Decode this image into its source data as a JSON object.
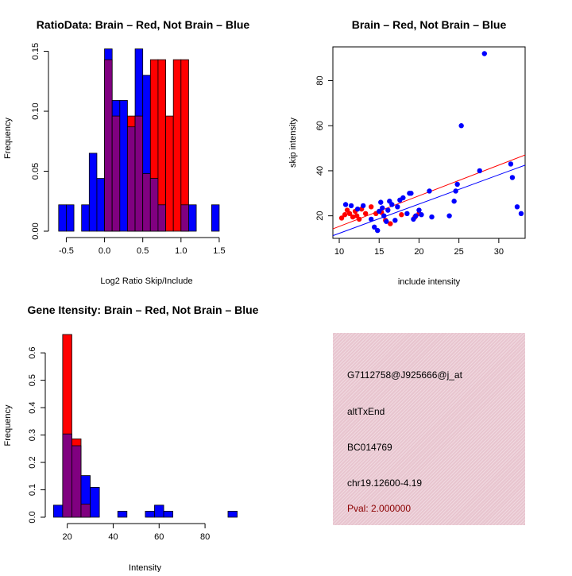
{
  "colors": {
    "brain": "#ff0000",
    "not_brain": "#0000ff",
    "overlap": "#800080",
    "panel_bg": "#e8c5cf",
    "pval_text": "#8b0000"
  },
  "chart_data": [
    {
      "type": "bar",
      "subtype": "overlaid-histogram",
      "title": "RatioData: Brain – Red, Not Brain – Blue",
      "xlabel": "Log2 Ratio Skip/Include",
      "ylabel": "Frequency",
      "xlim": [
        -0.65,
        1.75
      ],
      "ylim": [
        0,
        0.155
      ],
      "xticks": [
        -0.5,
        0.0,
        0.5,
        1.0,
        1.5
      ],
      "xtick_labels": [
        "-0.5",
        "0.0",
        "0.5",
        "1.0",
        "1.5"
      ],
      "yticks": [
        0,
        0.05,
        0.1,
        0.15
      ],
      "ytick_labels": [
        "0.00",
        "0.05",
        "0.10",
        "0.15"
      ],
      "bin_width": 0.1,
      "bin_starts": [
        -0.6,
        -0.5,
        -0.4,
        -0.3,
        -0.2,
        -0.1,
        0.0,
        0.1,
        0.2,
        0.3,
        0.4,
        0.5,
        0.6,
        0.7,
        0.8,
        0.9,
        1.0,
        1.1,
        1.2,
        1.3,
        1.4,
        1.5,
        1.6
      ],
      "series": [
        {
          "name": "Brain",
          "color": "red",
          "values": [
            0,
            0,
            0,
            0,
            0,
            0,
            0.143,
            0.096,
            0,
            0.096,
            0.096,
            0.048,
            0.143,
            0.143,
            0.096,
            0.143,
            0.143,
            0,
            0,
            0,
            0,
            0,
            0
          ]
        },
        {
          "name": "Not Brain",
          "color": "blue",
          "values": [
            0.022,
            0.022,
            0,
            0.022,
            0.065,
            0.044,
            0.152,
            0.109,
            0.109,
            0.087,
            0.152,
            0.13,
            0.044,
            0.022,
            0,
            0,
            0.022,
            0.022,
            0,
            0,
            0.022,
            0,
            0
          ]
        }
      ]
    },
    {
      "type": "scatter",
      "title": "Brain – Red, Not Brain – Blue",
      "xlabel": "include intensity",
      "ylabel": "skip intensity",
      "xlim": [
        9.2,
        33.3
      ],
      "ylim": [
        10,
        95
      ],
      "xticks": [
        10,
        15,
        20,
        25,
        30
      ],
      "xtick_labels": [
        "10",
        "15",
        "20",
        "25",
        "30"
      ],
      "yticks": [
        20,
        40,
        60,
        80
      ],
      "ytick_labels": [
        "20",
        "40",
        "60",
        "80"
      ],
      "series": [
        {
          "name": "Brain",
          "color": "red",
          "x": [
            10.3,
            10.7,
            11.0,
            11.3,
            11.7,
            12.0,
            12.2,
            12.5,
            12.8,
            13.3,
            14.0,
            14.6,
            15.3,
            15.8,
            16.4,
            17.8,
            19.5,
            20.0
          ],
          "y": [
            19.0,
            20.5,
            22.5,
            21.0,
            19.5,
            22.0,
            20.0,
            18.5,
            23.0,
            21.0,
            24.0,
            21.0,
            21.5,
            18.0,
            16.5,
            20.5,
            19.5,
            21.0
          ],
          "fit": [
            [
              9.2,
              14.2
            ],
            [
              33.3,
              47.0
            ]
          ]
        },
        {
          "name": "Not Brain",
          "color": "blue",
          "x": [
            10.8,
            11.5,
            12.3,
            13.0,
            14.0,
            14.4,
            14.8,
            15.0,
            15.2,
            15.4,
            15.6,
            15.9,
            16.1,
            16.3,
            16.6,
            17.0,
            17.3,
            17.6,
            18.0,
            18.5,
            18.8,
            19.0,
            19.3,
            19.6,
            20.0,
            20.3,
            21.3,
            21.6,
            23.8,
            24.4,
            24.6,
            24.8,
            25.3,
            27.6,
            28.2,
            31.5,
            31.7,
            32.3,
            32.8
          ],
          "y": [
            25.0,
            24.5,
            23.0,
            24.5,
            18.5,
            15.0,
            13.5,
            22.0,
            26.0,
            23.5,
            20.0,
            17.5,
            22.5,
            26.5,
            25.0,
            18.0,
            24.0,
            27.0,
            28.0,
            21.0,
            30.0,
            30.0,
            18.5,
            20.0,
            22.5,
            20.5,
            31.0,
            19.5,
            20.0,
            26.5,
            31.0,
            34.0,
            60.0,
            40.0,
            92.0,
            43.0,
            37.0,
            24.0,
            21.0
          ],
          "fit": [
            [
              9.2,
              11.2
            ],
            [
              33.3,
              42.5
            ]
          ]
        }
      ]
    },
    {
      "type": "bar",
      "subtype": "overlaid-histogram",
      "title": "Gene Itensity: Brain – Red, Not Brain – Blue",
      "xlabel": "Intensity",
      "ylabel": "Frequency",
      "xlim": [
        13.2,
        94.5
      ],
      "ylim": [
        0,
        0.67
      ],
      "xticks": [
        20,
        40,
        60,
        80
      ],
      "xtick_labels": [
        "20",
        "40",
        "60",
        "80"
      ],
      "yticks": [
        0,
        0.1,
        0.2,
        0.3,
        0.4,
        0.5,
        0.6
      ],
      "ytick_labels": [
        "0.0",
        "0.1",
        "0.2",
        "0.3",
        "0.4",
        "0.5",
        "0.6"
      ],
      "bin_width": 4,
      "bin_starts": [
        14,
        18,
        22,
        26,
        30,
        34,
        38,
        42,
        46,
        50,
        54,
        58,
        62,
        66,
        70,
        74,
        78,
        82,
        86,
        90
      ],
      "series": [
        {
          "name": "Brain",
          "color": "red",
          "values": [
            0,
            0.667,
            0.286,
            0.048,
            0,
            0,
            0,
            0,
            0,
            0,
            0,
            0,
            0,
            0,
            0,
            0,
            0,
            0,
            0,
            0
          ]
        },
        {
          "name": "Not Brain",
          "color": "blue",
          "values": [
            0.044,
            0.304,
            0.261,
            0.152,
            0.109,
            0,
            0,
            0.022,
            0,
            0,
            0.022,
            0.044,
            0.022,
            0,
            0,
            0,
            0,
            0,
            0,
            0.022
          ]
        }
      ]
    }
  ],
  "info_panel": {
    "probe_id": "G7112758@J925666@j_at",
    "event_type": "altTxEnd",
    "accession": "BC014769",
    "location": "chr19.12600-4.19",
    "pval": "Pval: 2.000000"
  }
}
